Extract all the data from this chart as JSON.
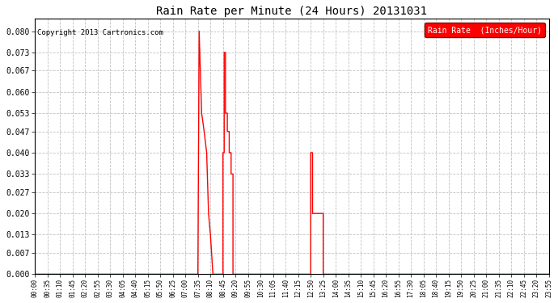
{
  "title": "Rain Rate per Minute (24 Hours) 20131031",
  "copyright": "Copyright 2013 Cartronics.com",
  "legend_label": "Rain Rate  (Inches/Hour)",
  "background_color": "#ffffff",
  "line_color": "#ff0000",
  "grid_color": "#bbbbbb",
  "ylim": [
    0.0,
    0.084
  ],
  "yticks": [
    0.0,
    0.007,
    0.013,
    0.02,
    0.027,
    0.033,
    0.04,
    0.047,
    0.053,
    0.06,
    0.067,
    0.073,
    0.08
  ],
  "x_labels": [
    "00:00",
    "00:35",
    "01:10",
    "01:45",
    "02:20",
    "02:55",
    "03:30",
    "04:05",
    "04:40",
    "05:15",
    "05:50",
    "06:25",
    "07:00",
    "07:35",
    "08:10",
    "08:45",
    "09:20",
    "09:55",
    "10:30",
    "11:05",
    "11:40",
    "12:15",
    "12:50",
    "13:25",
    "14:00",
    "14:35",
    "15:10",
    "15:45",
    "16:20",
    "16:55",
    "17:30",
    "18:05",
    "18:40",
    "19:15",
    "19:50",
    "20:25",
    "21:00",
    "21:35",
    "22:10",
    "22:45",
    "23:20",
    "23:55"
  ],
  "num_points": 42,
  "signal_x": [
    0,
    1,
    2,
    3,
    4,
    5,
    6,
    7,
    8,
    9,
    10,
    11,
    12,
    13,
    13.0,
    13.1,
    13.1,
    13.3,
    13.3,
    13.5,
    13.5,
    13.7,
    13.7,
    13.85,
    13.85,
    14.0,
    14.0,
    14.2,
    14.2,
    15.0,
    15.0,
    15.1,
    15.1,
    15.2,
    15.2,
    15.35,
    15.35,
    15.5,
    15.5,
    15.65,
    15.65,
    15.8,
    15.8,
    16.0,
    16.0,
    22.0,
    22.0,
    22.15,
    22.15,
    22.3,
    23.0,
    23.0,
    24,
    25,
    26,
    27,
    28,
    29,
    30,
    31,
    32,
    33,
    34,
    35,
    36,
    37,
    38,
    39,
    40,
    41
  ],
  "signal_y": [
    0,
    0,
    0,
    0,
    0,
    0,
    0,
    0,
    0,
    0,
    0,
    0,
    0,
    0,
    0,
    0.08,
    0.08,
    0.053,
    0.053,
    0.047,
    0.047,
    0.04,
    0.04,
    0.02,
    0.02,
    0.013,
    0.013,
    0,
    0,
    0,
    0.04,
    0.04,
    0.073,
    0.073,
    0.053,
    0.053,
    0.047,
    0.047,
    0.04,
    0.04,
    0.033,
    0.033,
    0,
    0,
    0,
    0,
    0.04,
    0.04,
    0.02,
    0.02,
    0.02,
    0,
    0,
    0,
    0,
    0,
    0,
    0,
    0,
    0,
    0,
    0,
    0,
    0,
    0,
    0,
    0,
    0,
    0,
    0
  ]
}
